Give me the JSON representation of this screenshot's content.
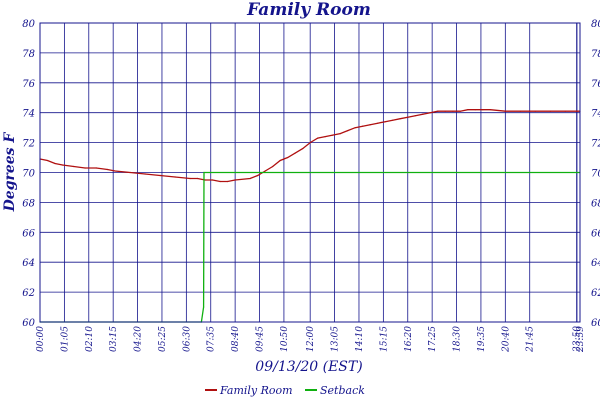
{
  "chart_data": {
    "type": "line",
    "title": "Family Room",
    "xlabel": "09/13/20 (EST)",
    "ylabel": "Degrees F",
    "ylim": [
      60,
      80
    ],
    "yticks": [
      60,
      62,
      64,
      66,
      68,
      70,
      72,
      74,
      76,
      78,
      80
    ],
    "xlim": [
      0,
      1439
    ],
    "x_tick_labels": [
      "00:00",
      "01:05",
      "02:10",
      "03:15",
      "04:20",
      "05:25",
      "06:30",
      "07:35",
      "08:40",
      "09:45",
      "10:50",
      "12:00",
      "13:05",
      "14:10",
      "15:15",
      "16:20",
      "17:25",
      "18:30",
      "19:35",
      "20:40",
      "21:45",
      "23:50",
      "23:59"
    ],
    "x_ticks_minutes": [
      0,
      65,
      130,
      195,
      260,
      325,
      390,
      455,
      520,
      585,
      650,
      720,
      785,
      850,
      915,
      980,
      1045,
      1110,
      1175,
      1240,
      1305,
      1430,
      1439
    ],
    "grid": true,
    "legend_position": "bottom",
    "series": [
      {
        "name": "Family Room",
        "color": "#b01010",
        "x": [
          0,
          20,
          40,
          60,
          90,
          120,
          150,
          180,
          200,
          240,
          280,
          320,
          360,
          400,
          420,
          440,
          460,
          480,
          500,
          520,
          560,
          580,
          600,
          620,
          640,
          660,
          680,
          700,
          720,
          740,
          760,
          780,
          800,
          820,
          840,
          860,
          880,
          900,
          920,
          940,
          960,
          980,
          1000,
          1020,
          1040,
          1060,
          1080,
          1100,
          1120,
          1140,
          1160,
          1180,
          1200,
          1240,
          1280,
          1320,
          1360,
          1400,
          1439
        ],
        "y": [
          70.9,
          70.8,
          70.6,
          70.5,
          70.4,
          70.3,
          70.3,
          70.2,
          70.1,
          70.0,
          69.9,
          69.8,
          69.7,
          69.6,
          69.6,
          69.5,
          69.5,
          69.4,
          69.4,
          69.5,
          69.6,
          69.8,
          70.1,
          70.4,
          70.8,
          71.0,
          71.3,
          71.6,
          72.0,
          72.3,
          72.4,
          72.5,
          72.6,
          72.8,
          73.0,
          73.1,
          73.2,
          73.3,
          73.4,
          73.5,
          73.6,
          73.7,
          73.8,
          73.9,
          74.0,
          74.1,
          74.1,
          74.1,
          74.1,
          74.2,
          74.2,
          74.2,
          74.2,
          74.1,
          74.1,
          74.1,
          74.1,
          74.1,
          74.1
        ]
      },
      {
        "name": "Setback",
        "color": "#10b010",
        "x": [
          0,
          430,
          436,
          437,
          1439
        ],
        "y": [
          60,
          60,
          61,
          70,
          70
        ]
      }
    ]
  }
}
